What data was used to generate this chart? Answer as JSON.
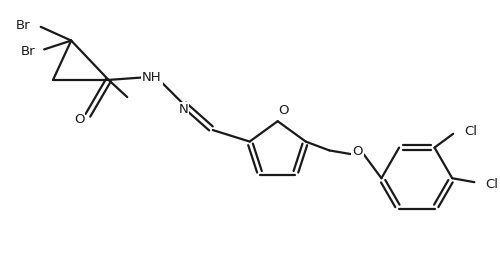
{
  "bg_color": "#ffffff",
  "line_color": "#1a1a1a",
  "line_width": 1.6,
  "font_size": 9.5,
  "figsize": [
    5.0,
    2.65
  ],
  "dpi": 100,
  "xlim": [
    0,
    10
  ],
  "ylim": [
    0,
    5.3
  ]
}
